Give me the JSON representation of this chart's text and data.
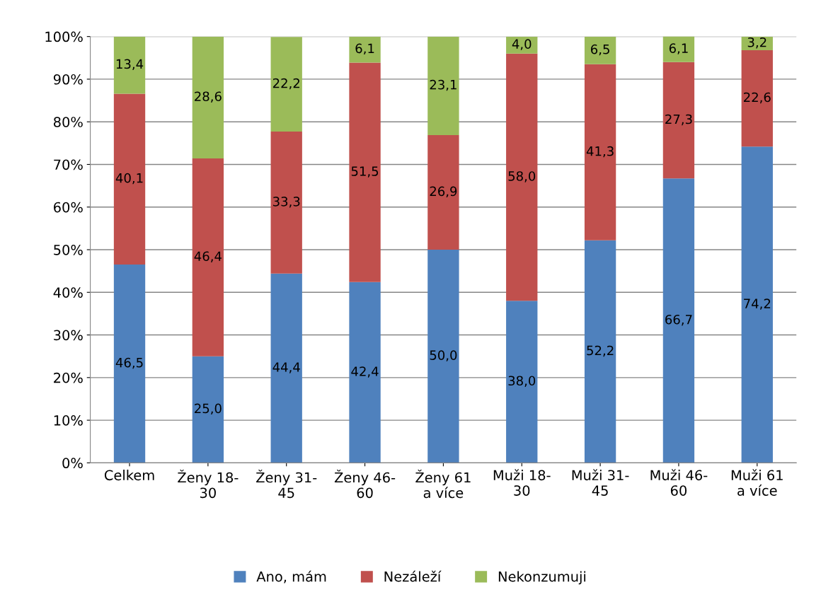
{
  "chart_data": {
    "type": "bar",
    "stacked": true,
    "categories": [
      "Celkem",
      "Ženy 18-\n30",
      "Ženy 31-\n45",
      "Ženy 46-\n60",
      "Ženy 61\na více",
      "Muži 18-\n30",
      "Muži 31-\n45",
      "Muži 46-\n60",
      "Muži 61\na více"
    ],
    "series": [
      {
        "name": "Ano, mám",
        "color": "#4f81bd",
        "values": [
          46.5,
          25.0,
          44.4,
          42.4,
          50.0,
          38.0,
          52.2,
          66.7,
          74.2
        ],
        "value_labels": [
          "46,5",
          "25,0",
          "44,4",
          "42,4",
          "50,0",
          "38,0",
          "52,2",
          "66,7",
          "74,2"
        ]
      },
      {
        "name": "Nezáleží",
        "color": "#c0504d",
        "values": [
          40.1,
          46.4,
          33.3,
          51.5,
          26.9,
          58.0,
          41.3,
          27.3,
          22.6
        ],
        "value_labels": [
          "40,1",
          "46,4",
          "33,3",
          "51,5",
          "26,9",
          "58,0",
          "41,3",
          "27,3",
          "22,6"
        ]
      },
      {
        "name": "Nekonzumuji",
        "color": "#9bbb59",
        "values": [
          13.4,
          28.6,
          22.2,
          6.1,
          23.1,
          4.0,
          6.5,
          6.1,
          3.2
        ],
        "value_labels": [
          "13,4",
          "28,6",
          "22,2",
          "6,1",
          "23,1",
          "4,0",
          "6,5",
          "6,1",
          "3,2"
        ]
      }
    ],
    "ylim": [
      0,
      100
    ],
    "yticks": [
      {
        "value": 0,
        "label": "0%"
      },
      {
        "value": 10,
        "label": "10%"
      },
      {
        "value": 20,
        "label": "20%"
      },
      {
        "value": 30,
        "label": "30%"
      },
      {
        "value": 40,
        "label": "40%"
      },
      {
        "value": 50,
        "label": "50%"
      },
      {
        "value": 60,
        "label": "60%"
      },
      {
        "value": 70,
        "label": "70%"
      },
      {
        "value": 80,
        "label": "80%"
      },
      {
        "value": 90,
        "label": "90%"
      },
      {
        "value": 100,
        "label": "100%"
      }
    ],
    "grid": "y",
    "legend": "bottom"
  }
}
